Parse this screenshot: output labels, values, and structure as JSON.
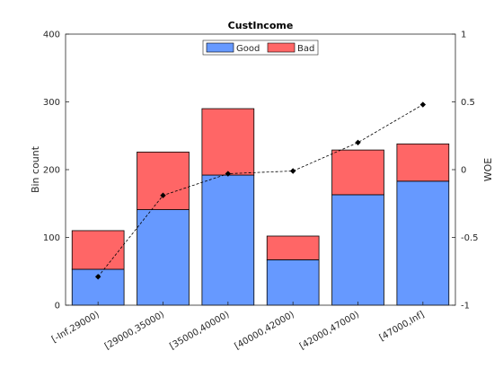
{
  "chart_data": {
    "type": "bar",
    "title": "CustIncome",
    "xlabel": "",
    "ylabel": "Bin count",
    "y2label": "WOE",
    "categories": [
      "[-Inf,29000)",
      "[29000,35000)",
      "[35000,40000)",
      "[40000,42000)",
      "[42000,47000)",
      "[47000,Inf]"
    ],
    "stacked": true,
    "series": [
      {
        "name": "Good",
        "values": [
          53,
          141,
          192,
          67,
          163,
          183
        ]
      },
      {
        "name": "Bad",
        "values": [
          57,
          85,
          98,
          35,
          66,
          55
        ]
      }
    ],
    "line": {
      "axis": "right",
      "values": [
        -0.79,
        -0.19,
        -0.03,
        -0.01,
        0.2,
        0.48
      ]
    },
    "ylim": [
      0,
      400
    ],
    "yticks": [
      0,
      100,
      200,
      300,
      400
    ],
    "y2lim": [
      -1,
      1
    ],
    "y2ticks": [
      -1,
      -0.5,
      0,
      0.5,
      1
    ],
    "y2tick_labels": [
      "-1",
      "-0.5",
      "0",
      "0.5",
      "1"
    ],
    "legend_position": "top-center",
    "grid": false,
    "colors": {
      "Good": "#6699ff",
      "Bad": "#ff6666",
      "line": "#000000"
    }
  }
}
